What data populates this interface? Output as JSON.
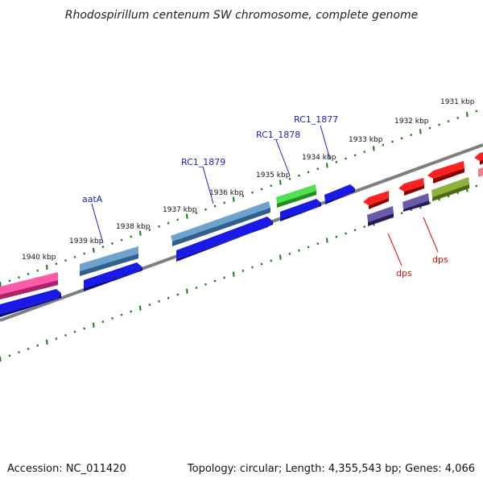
{
  "title": "Rhodospirillum centenum SW chromosome, complete genome",
  "footer": {
    "accession": "Accession: NC_011420",
    "topology": "Topology: circular; Length: 4,355,543 bp; Genes: 4,066"
  },
  "ticks": [
    "1931 kbp",
    "1932 kbp",
    "1933 kbp",
    "1934 kbp",
    "1935 kbp",
    "1936 kbp",
    "1937 kbp",
    "1938 kbp",
    "1939 kbp",
    "1940 kbp"
  ],
  "genes": {
    "rc1_1877": "RC1_1877",
    "rc1_1878": "RC1_1878",
    "rc1_1879": "RC1_1879",
    "aatA": "aatA",
    "dps_1": "dps",
    "dps_2": "dps"
  },
  "colors": {
    "backbone": "#7f7f80",
    "tick": "#1a7a1a",
    "label_blue": "#2020c8",
    "label_red": "#d01010",
    "cds_blue": "#1010e0",
    "steel": "#4682b4",
    "pink": "#e82e8c",
    "green": "#30c030",
    "red": "#e01010",
    "purple": "#4a3a8a",
    "olive": "#6b8e23"
  }
}
